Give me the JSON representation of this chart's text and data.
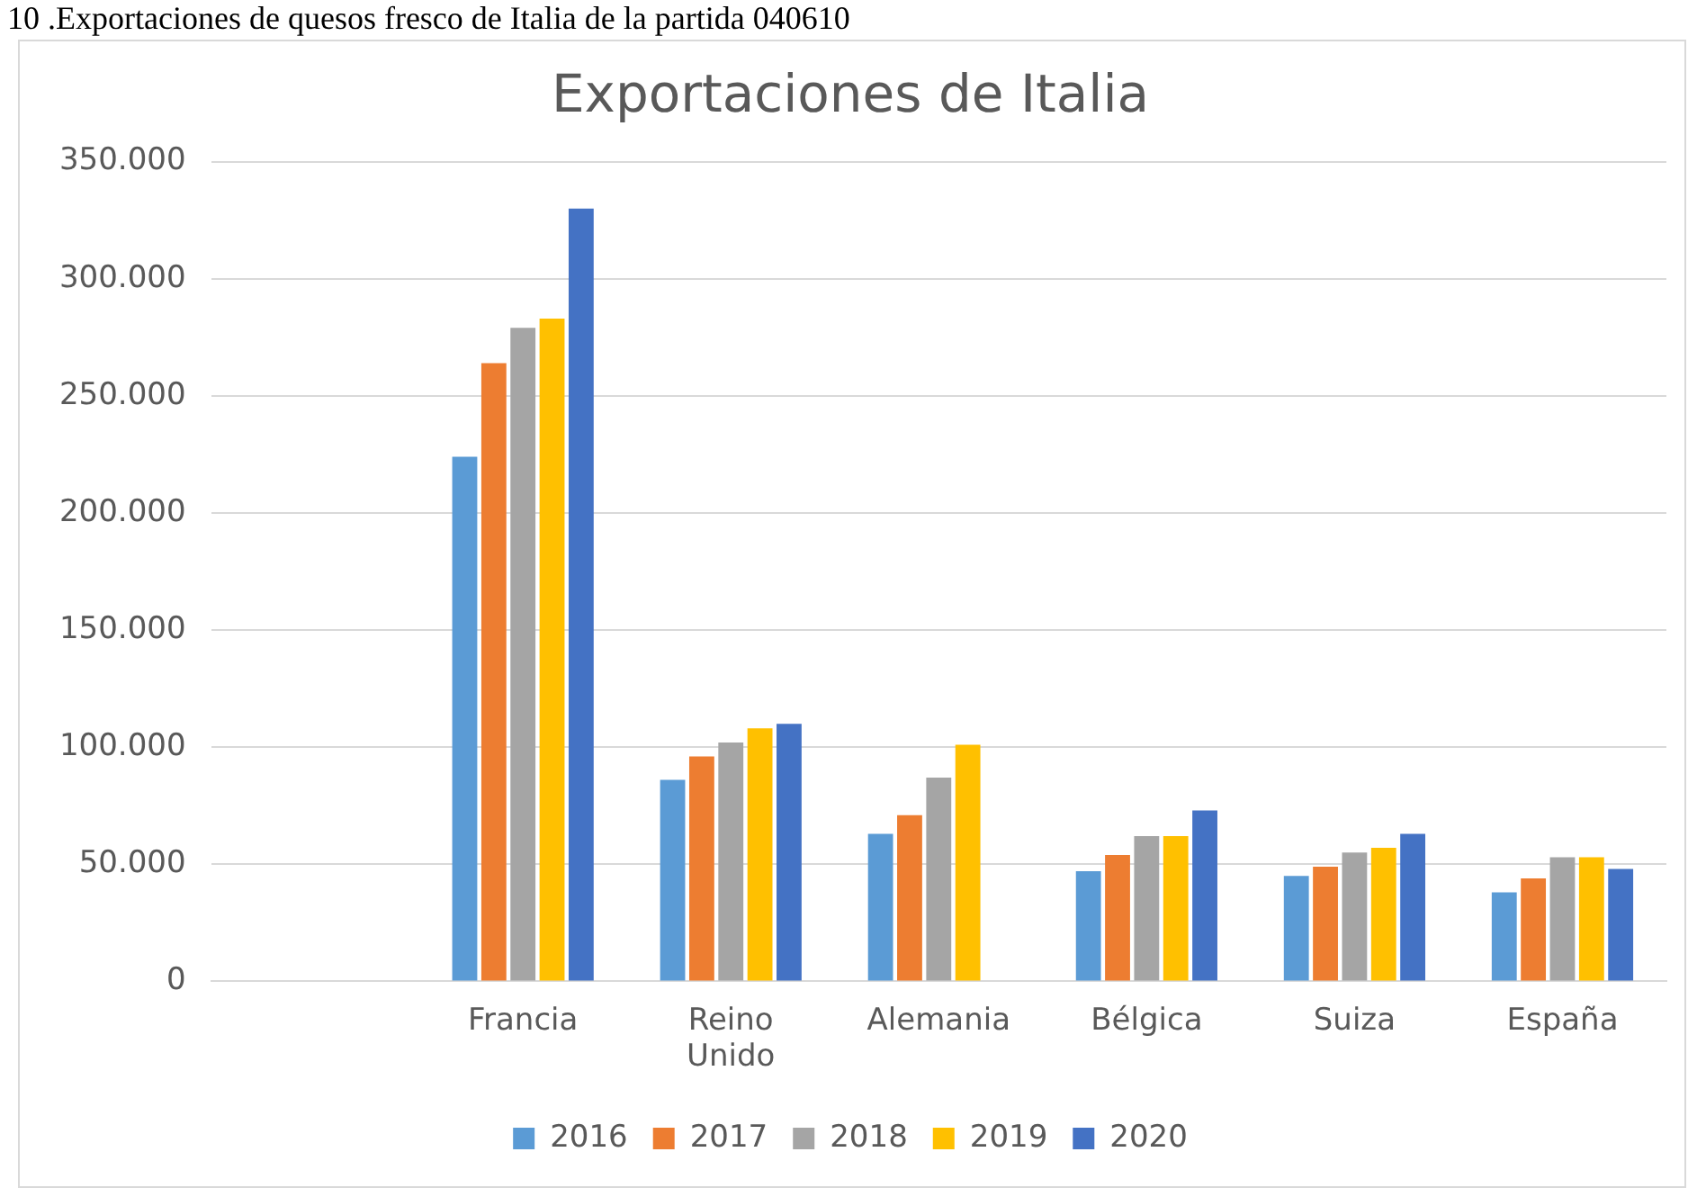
{
  "chart_data": {
    "type": "bar",
    "title": "Exportaciones de Italia",
    "annotations": [
      "10 .Exportaciones de quesos fresco de Italia de la partida 040610"
    ],
    "categories": [
      null,
      "Francia",
      "Reino Unido",
      "Alemania",
      "Bélgica",
      "Suiza",
      "España"
    ],
    "series": [
      {
        "name": "2016",
        "color": "#5b9bd5",
        "values": [
          null,
          224000,
          86000,
          63000,
          47000,
          45000,
          38000
        ]
      },
      {
        "name": "2017",
        "color": "#ed7d31",
        "values": [
          null,
          264000,
          96000,
          71000,
          54000,
          49000,
          44000
        ]
      },
      {
        "name": "2018",
        "color": "#a5a5a5",
        "values": [
          null,
          279000,
          102000,
          87000,
          62000,
          55000,
          53000
        ]
      },
      {
        "name": "2019",
        "color": "#ffc000",
        "values": [
          null,
          283000,
          108000,
          101000,
          62000,
          57000,
          53000
        ]
      },
      {
        "name": "2020",
        "color": "#4472c4",
        "values": [
          null,
          330000,
          110000,
          null,
          73000,
          63000,
          48000
        ]
      }
    ],
    "ylim": [
      0,
      350000
    ],
    "yticks": [
      {
        "value": 0,
        "label": "0"
      },
      {
        "value": 50000,
        "label": "50.000"
      },
      {
        "value": 100000,
        "label": "100.000"
      },
      {
        "value": 150000,
        "label": "150.000"
      },
      {
        "value": 200000,
        "label": "200.000"
      },
      {
        "value": 250000,
        "label": "250.000"
      },
      {
        "value": 300000,
        "label": "300.000"
      },
      {
        "value": 350000,
        "label": "350.000"
      }
    ],
    "grid": "y",
    "legend": "bottom"
  }
}
